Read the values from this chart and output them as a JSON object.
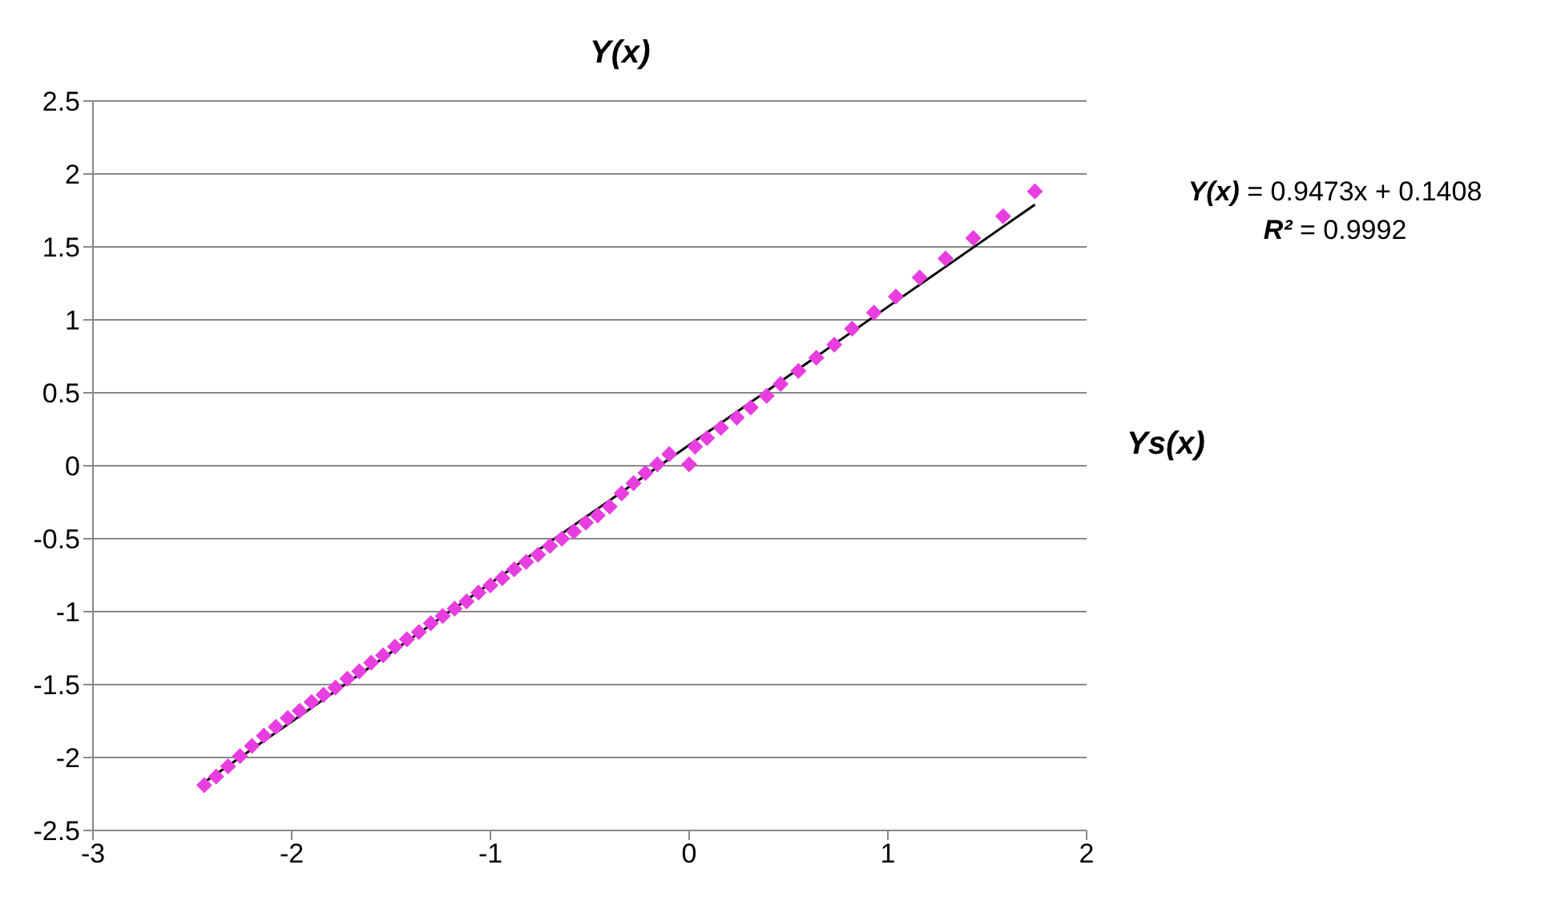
{
  "chart_data": {
    "type": "scatter",
    "xlabel": "Ys(x)",
    "ylabel": "Y(x)",
    "xlim": [
      -3,
      2
    ],
    "xticks": [
      -3,
      -2,
      -1,
      0,
      1,
      2
    ],
    "ylim": [
      -2.5,
      2.5
    ],
    "yticks": [
      -2.5,
      -2,
      -1.5,
      -1,
      -0.5,
      0,
      0.5,
      1,
      1.5,
      2,
      2.5
    ],
    "grid": "y",
    "annotations": [
      "Y(x) = 0.9473x + 0.1408",
      "R² = 0.9992"
    ],
    "series": [
      {
        "marker": "diamond",
        "color": "#e83ee0",
        "x": [
          -2.44,
          -2.38,
          -2.32,
          -2.26,
          -2.2,
          -2.14,
          -2.08,
          -2.02,
          -1.96,
          -1.9,
          -1.84,
          -1.78,
          -1.72,
          -1.66,
          -1.6,
          -1.54,
          -1.48,
          -1.42,
          -1.36,
          -1.3,
          -1.24,
          -1.18,
          -1.12,
          -1.06,
          -1.0,
          -0.94,
          -0.88,
          -0.82,
          -0.76,
          -0.7,
          -0.64,
          -0.58,
          -0.52,
          -0.46,
          -0.4,
          -0.34,
          -0.28,
          -0.22,
          -0.16,
          -0.1,
          0.0,
          0.03,
          0.09,
          0.16,
          0.24,
          0.31,
          0.39,
          0.46,
          0.55,
          0.64,
          0.73,
          0.82,
          0.93,
          1.04,
          1.16,
          1.29,
          1.43,
          1.58,
          1.74
        ],
        "values": [
          -2.19,
          -2.13,
          -2.06,
          -1.99,
          -1.92,
          -1.85,
          -1.79,
          -1.73,
          -1.68,
          -1.62,
          -1.57,
          -1.52,
          -1.46,
          -1.41,
          -1.35,
          -1.3,
          -1.24,
          -1.19,
          -1.14,
          -1.08,
          -1.03,
          -0.98,
          -0.93,
          -0.87,
          -0.82,
          -0.77,
          -0.71,
          -0.66,
          -0.61,
          -0.55,
          -0.5,
          -0.45,
          -0.39,
          -0.34,
          -0.28,
          -0.19,
          -0.12,
          -0.05,
          0.01,
          0.08,
          0.01,
          0.13,
          0.19,
          0.26,
          0.33,
          0.4,
          0.48,
          0.56,
          0.65,
          0.74,
          0.83,
          0.94,
          1.05,
          1.16,
          1.29,
          1.42,
          1.56,
          1.71,
          1.88
        ]
      },
      {
        "type": "line",
        "marker": "none",
        "color": "#000000",
        "x": [
          -2.44,
          1.74
        ],
        "values": [
          -2.17,
          1.79
        ]
      }
    ]
  }
}
